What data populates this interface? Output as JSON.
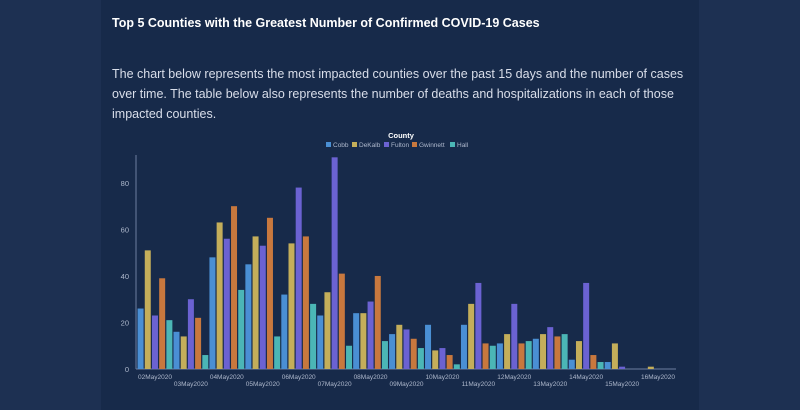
{
  "page": {
    "title": "Top 5 Counties with the Greatest Number of Confirmed COVID-19 Cases",
    "description": "The chart below represents the most impacted counties over the past 15 days and the number of cases over time. The table below also represents the number of deaths and hospitalizations in each of those impacted counties."
  },
  "colors": {
    "background": "#1d3052",
    "panel": "#172a4a",
    "Cobb": "#4a8fd4",
    "DeKalb": "#c4ae5a",
    "Fulton": "#6b62d2",
    "Gwinnett": "#c8783e",
    "Hall": "#4bb6b6"
  },
  "chart_data": {
    "type": "bar",
    "legend_title": "County",
    "legend_position": "top",
    "categories": [
      "02May2020",
      "03May2020",
      "04May2020",
      "05May2020",
      "06May2020",
      "07May2020",
      "08May2020",
      "09May2020",
      "10May2020",
      "11May2020",
      "12May2020",
      "13May2020",
      "14May2020",
      "15May2020",
      "16May2020"
    ],
    "series": [
      {
        "name": "Cobb",
        "values": [
          26,
          16,
          48,
          45,
          32,
          23,
          24,
          15,
          19,
          19,
          11,
          13,
          4,
          3,
          0
        ]
      },
      {
        "name": "DeKalb",
        "values": [
          51,
          14,
          63,
          57,
          54,
          33,
          24,
          19,
          8,
          28,
          15,
          15,
          12,
          11,
          1
        ]
      },
      {
        "name": "Fulton",
        "values": [
          23,
          30,
          56,
          53,
          78,
          91,
          29,
          17,
          9,
          37,
          28,
          18,
          37,
          1,
          0
        ]
      },
      {
        "name": "Gwinnett",
        "values": [
          39,
          22,
          70,
          65,
          57,
          41,
          40,
          13,
          6,
          11,
          11,
          14,
          6,
          0,
          0
        ]
      },
      {
        "name": "Hall",
        "values": [
          21,
          6,
          34,
          14,
          28,
          10,
          12,
          9,
          2,
          10,
          12,
          15,
          3,
          0,
          0
        ]
      }
    ],
    "ylim": [
      0,
      92
    ],
    "yticks": [
      0,
      20,
      40,
      60,
      80
    ],
    "xlabel": "",
    "ylabel": "",
    "grid": false
  }
}
